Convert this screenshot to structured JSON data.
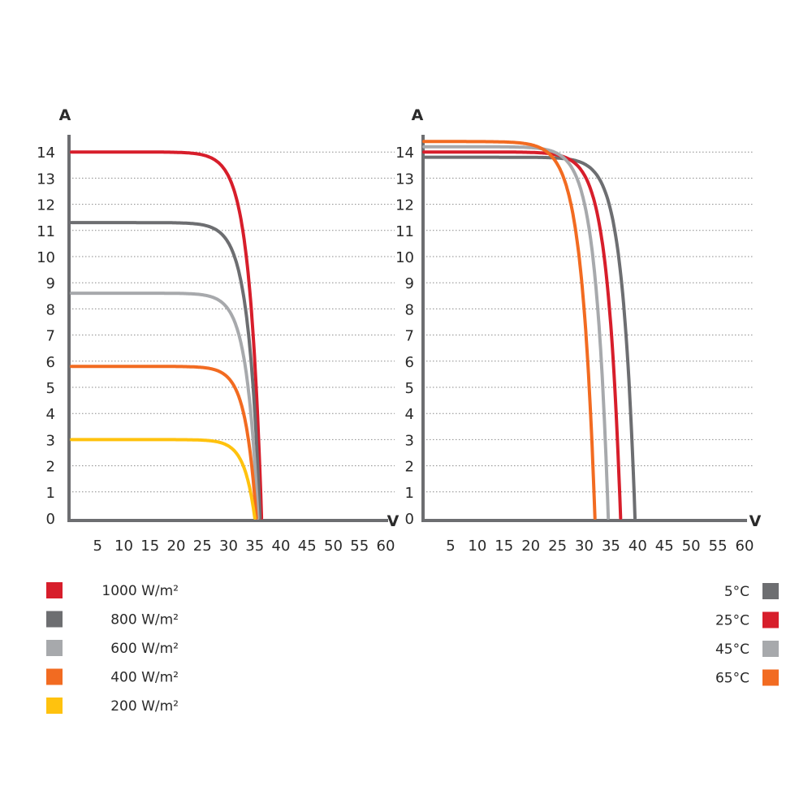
{
  "chart_data": [
    {
      "type": "line",
      "xlabel": "V",
      "ylabel": "A",
      "xlim": [
        0,
        60
      ],
      "ylim": [
        0,
        14
      ],
      "x_ticks": [
        "5",
        "10",
        "15",
        "20",
        "25",
        "30",
        "35",
        "40",
        "45",
        "50",
        "55",
        "60"
      ],
      "y_ticks": [
        "0",
        "1",
        "2",
        "3",
        "4",
        "5",
        "6",
        "7",
        "8",
        "9",
        "10",
        "11",
        "12",
        "13",
        "14"
      ],
      "grid": "horizontal dotted",
      "legend_position": "bottom-left",
      "series": [
        {
          "name": "1000 W/m²",
          "color": "#d71e2b",
          "isc": 14.0,
          "voc": 36.3,
          "knee": 27,
          "curvature": 8,
          "x": [
            0,
            20,
            25,
            28,
            30,
            32,
            34,
            35,
            36,
            36.3
          ],
          "y": [
            14.0,
            14.0,
            13.9,
            13.5,
            12.0,
            9.0,
            4.8,
            2.6,
            0.6,
            0
          ]
        },
        {
          "name": "800 W/m²",
          "color": "#6d6e71",
          "isc": 11.3,
          "voc": 36.0,
          "knee": 27,
          "curvature": 8,
          "x": [
            0,
            20,
            25,
            28,
            30,
            32,
            34,
            35,
            36
          ],
          "y": [
            11.3,
            11.3,
            11.25,
            10.9,
            9.7,
            7.2,
            3.9,
            2.0,
            0
          ]
        },
        {
          "name": "600 W/m²",
          "color": "#a7a9ac",
          "isc": 8.6,
          "voc": 35.6,
          "knee": 27,
          "curvature": 8,
          "x": [
            0,
            20,
            25,
            28,
            30,
            32,
            34,
            35,
            35.6
          ],
          "y": [
            8.6,
            8.6,
            8.55,
            8.3,
            7.4,
            5.5,
            2.8,
            1.2,
            0
          ]
        },
        {
          "name": "400 W/m²",
          "color": "#f26b21",
          "isc": 5.8,
          "voc": 35.3,
          "knee": 27,
          "curvature": 8,
          "x": [
            0,
            20,
            25,
            28,
            30,
            32,
            34,
            35,
            35.3
          ],
          "y": [
            5.8,
            5.8,
            5.78,
            5.6,
            5.0,
            3.7,
            1.8,
            0.6,
            0
          ]
        },
        {
          "name": "200 W/m²",
          "color": "#ffc20e",
          "isc": 3.0,
          "voc": 35.0,
          "knee": 27,
          "curvature": 8,
          "x": [
            0,
            20,
            25,
            28,
            30,
            32,
            34,
            35
          ],
          "y": [
            3.0,
            3.0,
            2.99,
            2.9,
            2.6,
            1.9,
            0.9,
            0
          ]
        }
      ]
    },
    {
      "type": "line",
      "xlabel": "V",
      "ylabel": "A",
      "xlim": [
        0,
        60
      ],
      "ylim": [
        0,
        14
      ],
      "x_ticks": [
        "5",
        "10",
        "15",
        "20",
        "25",
        "30",
        "35",
        "40",
        "45",
        "50",
        "55",
        "60"
      ],
      "y_ticks": [
        "0",
        "1",
        "2",
        "3",
        "4",
        "5",
        "6",
        "7",
        "8",
        "9",
        "10",
        "11",
        "12",
        "13",
        "14"
      ],
      "grid": "horizontal dotted",
      "legend_position": "bottom-right",
      "series": [
        {
          "name": "5°C",
          "color": "#6d6e71",
          "isc": 13.8,
          "voc": 39.5,
          "knee": 30,
          "curvature": 8,
          "x": [
            0,
            25,
            30,
            33,
            35,
            37,
            38,
            39,
            39.5
          ],
          "y": [
            13.8,
            13.8,
            13.7,
            13.0,
            11.0,
            7.5,
            4.8,
            1.8,
            0
          ]
        },
        {
          "name": "25°C",
          "color": "#d71e2b",
          "isc": 14.0,
          "voc": 36.8,
          "knee": 27,
          "curvature": 8,
          "x": [
            0,
            22,
            27,
            30,
            32,
            34,
            35,
            36,
            36.8
          ],
          "y": [
            14.0,
            14.0,
            13.9,
            13.1,
            11.2,
            7.6,
            5.2,
            2.5,
            0
          ]
        },
        {
          "name": "45°C",
          "color": "#a7a9ac",
          "isc": 14.2,
          "voc": 34.5,
          "knee": 25,
          "curvature": 8,
          "x": [
            0,
            20,
            25,
            28,
            30,
            32,
            33,
            34,
            34.5
          ],
          "y": [
            14.2,
            14.2,
            14.1,
            13.2,
            11.3,
            7.5,
            5.0,
            2.3,
            0
          ]
        },
        {
          "name": "65°C",
          "color": "#f26b21",
          "isc": 14.4,
          "voc": 32.0,
          "knee": 22,
          "curvature": 8,
          "x": [
            0,
            18,
            22,
            25,
            27,
            29,
            30,
            31,
            32
          ],
          "y": [
            14.4,
            14.4,
            14.2,
            13.2,
            11.2,
            7.5,
            5.1,
            2.5,
            0
          ]
        }
      ]
    }
  ]
}
